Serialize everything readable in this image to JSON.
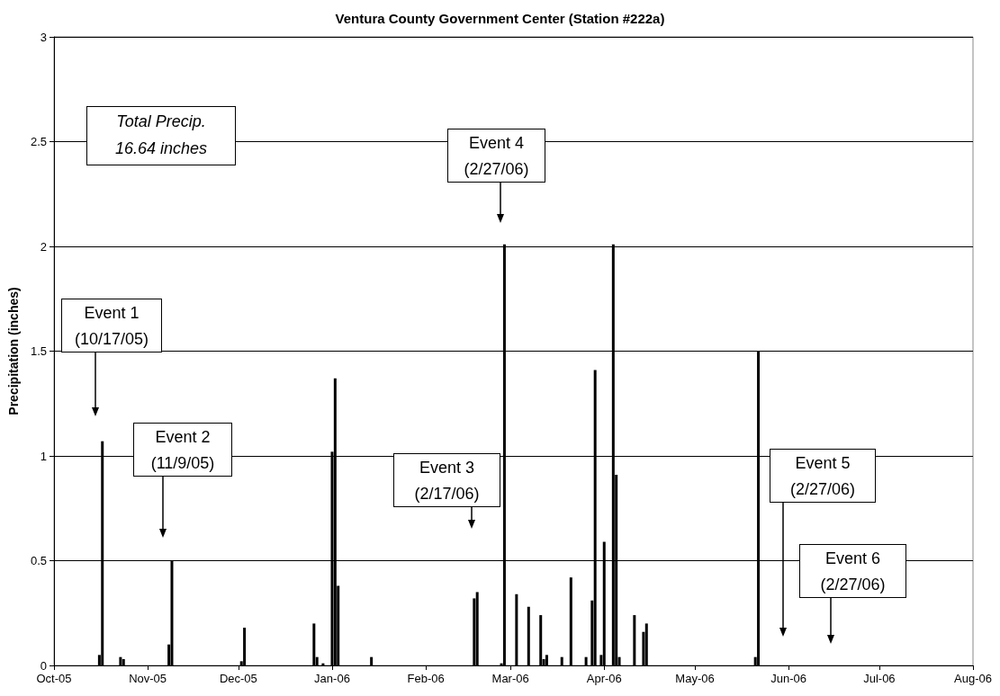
{
  "chart_data": {
    "type": "bar",
    "title": "Ventura County Government Center (Station #222a)",
    "ylabel": "Precipitation (inches)",
    "x": [
      "2005-10-16",
      "2005-10-17",
      "2005-10-23",
      "2005-10-24",
      "2005-11-08",
      "2005-11-09",
      "2005-12-02",
      "2005-12-03",
      "2005-12-26",
      "2005-12-27",
      "2005-12-29",
      "2006-01-01",
      "2006-01-02",
      "2006-01-03",
      "2006-01-14",
      "2006-02-17",
      "2006-02-18",
      "2006-02-26",
      "2006-02-27",
      "2006-03-03",
      "2006-03-07",
      "2006-03-11",
      "2006-03-12",
      "2006-03-13",
      "2006-03-18",
      "2006-03-21",
      "2006-03-26",
      "2006-03-28",
      "2006-03-29",
      "2006-03-31",
      "2006-04-01",
      "2006-04-04",
      "2006-04-05",
      "2006-04-06",
      "2006-04-11",
      "2006-04-14",
      "2006-04-15",
      "2006-05-21",
      "2006-05-22"
    ],
    "values": [
      0.05,
      1.07,
      0.04,
      0.03,
      0.1,
      0.5,
      0.02,
      0.18,
      0.2,
      0.04,
      0.01,
      1.02,
      1.37,
      0.38,
      0.04,
      0.32,
      0.35,
      0.01,
      2.01,
      0.34,
      0.28,
      0.24,
      0.03,
      0.05,
      0.04,
      0.42,
      0.04,
      0.31,
      1.41,
      0.05,
      0.59,
      2.01,
      0.91,
      0.04,
      0.24,
      0.16,
      0.2,
      0.04,
      1.5
    ],
    "color": "#000000",
    "xlim": [
      "2005-10-01",
      "2006-08-01"
    ],
    "xticks": [
      {
        "value": "2005-10-01",
        "label": "Oct-05"
      },
      {
        "value": "2005-11-01",
        "label": "Nov-05"
      },
      {
        "value": "2005-12-01",
        "label": "Dec-05"
      },
      {
        "value": "2006-01-01",
        "label": "Jan-06"
      },
      {
        "value": "2006-02-01",
        "label": "Feb-06"
      },
      {
        "value": "2006-03-01",
        "label": "Mar-06"
      },
      {
        "value": "2006-04-01",
        "label": "Apr-06"
      },
      {
        "value": "2006-05-01",
        "label": "May-06"
      },
      {
        "value": "2006-06-01",
        "label": "Jun-06"
      },
      {
        "value": "2006-07-01",
        "label": "Jul-06"
      },
      {
        "value": "2006-08-01",
        "label": "Aug-06"
      }
    ],
    "ylim": [
      0,
      3
    ],
    "yticks": [
      0,
      0.5,
      1,
      1.5,
      2,
      2.5,
      3
    ],
    "grid": "y",
    "annotations": [
      "Total Precip.\n16.64 inches",
      "Event 1\n(10/17/05)",
      "Event 2\n(11/9/05)",
      "Event 3\n(2/17/06)",
      "Event 4\n(2/27/06)",
      "Event 5\n(2/27/06)",
      "Event 6\n(2/27/06)"
    ]
  }
}
